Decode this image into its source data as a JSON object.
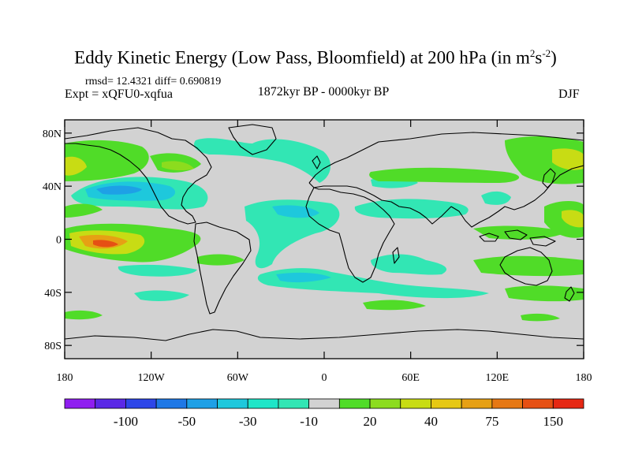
{
  "title": {
    "main": "Eddy Kinetic Energy (Low Pass, Bloomfield) at 200 hPa (in m",
    "sup1": "2",
    "mid": "s",
    "sup2": "-2",
    "close": ")"
  },
  "stats": "rmsd= 12.4321  diff= 0.690819",
  "experiment": "Expt = xQFU0-xqfua",
  "period": "1872kyr BP - 0000kyr BP",
  "season": "DJF",
  "y_ticks": [
    {
      "label": "80N",
      "lat": 80
    },
    {
      "label": "40N",
      "lat": 40
    },
    {
      "label": "0",
      "lat": 0
    },
    {
      "label": "40S",
      "lat": -40
    },
    {
      "label": "80S",
      "lat": -80
    }
  ],
  "x_ticks": [
    {
      "label": "180",
      "lon": -180
    },
    {
      "label": "120W",
      "lon": -120
    },
    {
      "label": "60W",
      "lon": -60
    },
    {
      "label": "0",
      "lon": 0
    },
    {
      "label": "60E",
      "lon": 60
    },
    {
      "label": "120E",
      "lon": 120
    },
    {
      "label": "180",
      "lon": 180
    }
  ],
  "colorbar": {
    "colors": [
      "#8f1ef0",
      "#5a28e6",
      "#2d46e8",
      "#1e78e6",
      "#1ea0e6",
      "#1ec8dc",
      "#1ee6c8",
      "#32e6b4",
      "#d2d2d2",
      "#50dc28",
      "#8cdc1e",
      "#c8dc14",
      "#e6c814",
      "#e6a014",
      "#e67814",
      "#e65014",
      "#e62814"
    ],
    "labels": [
      {
        "text": "-100",
        "index": 2
      },
      {
        "text": "-50",
        "index": 4
      },
      {
        "text": "-30",
        "index": 6
      },
      {
        "text": "-10",
        "index": 8
      },
      {
        "text": "20",
        "index": 10
      },
      {
        "text": "40",
        "index": 12
      },
      {
        "text": "75",
        "index": 14
      },
      {
        "text": "150",
        "index": 16
      }
    ]
  },
  "map_background": "#d2d2d2"
}
